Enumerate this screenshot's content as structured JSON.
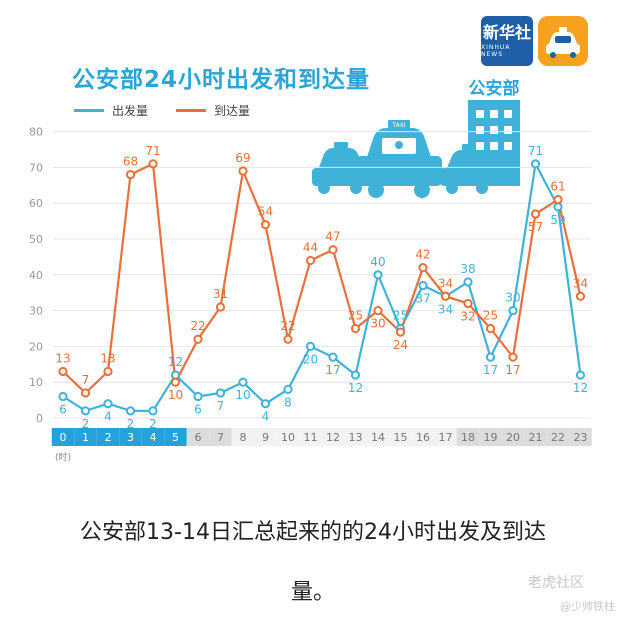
{
  "header": {
    "title": "公安部24小时出发和到达量",
    "xinhua_logo_text": "新华社",
    "xinhua_logo_sub": "XINHUA NEWS",
    "building_label": "公安部",
    "taxi_sign": "TAXI"
  },
  "legend": {
    "departure": "出发量",
    "arrival": "到达量"
  },
  "colors": {
    "departure": "#3fb2d9",
    "arrival": "#e8703a",
    "accent_blue": "#2ba4d8",
    "tick_blue": "#25a2dc",
    "tick_gray": "#dcdcdc"
  },
  "chart_data": {
    "type": "line",
    "title": "公安部24小时出发和到达量",
    "x": [
      0,
      1,
      2,
      3,
      4,
      5,
      6,
      7,
      8,
      9,
      10,
      11,
      12,
      13,
      14,
      15,
      16,
      17,
      18,
      19,
      20,
      21,
      22,
      23
    ],
    "x_unit": "(时)",
    "ylim": [
      0,
      80
    ],
    "yticks": [
      0,
      10,
      20,
      30,
      40,
      50,
      60,
      70,
      80
    ],
    "grid": true,
    "legend_position": "top-left",
    "series": [
      {
        "name": "出发量",
        "values": [
          6,
          2,
          4,
          2,
          2,
          12,
          6,
          7,
          10,
          4,
          8,
          20,
          17,
          12,
          40,
          25,
          37,
          34,
          38,
          17,
          30,
          71,
          59,
          12
        ]
      },
      {
        "name": "到达量",
        "values": [
          13,
          7,
          13,
          68,
          71,
          10,
          22,
          31,
          69,
          54,
          22,
          44,
          47,
          25,
          30,
          24,
          42,
          34,
          32,
          25,
          17,
          57,
          61,
          34
        ]
      }
    ],
    "highlighted_hours": [
      0,
      1,
      2,
      3,
      4,
      5
    ],
    "gray_hours": [
      6,
      7,
      18,
      19,
      20,
      21,
      22,
      23
    ]
  },
  "caption": {
    "line1": "公安部13-14日汇总起来的的24小时出发及到达",
    "line2": "量。"
  },
  "watermark": {
    "main": "老虎社区",
    "sub": "@少帅铁柱"
  }
}
